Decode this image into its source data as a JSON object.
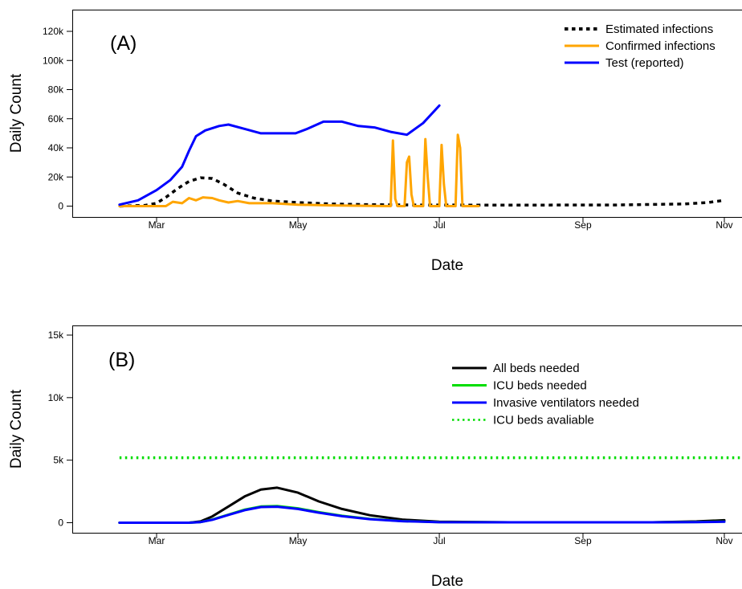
{
  "chart_data": [
    {
      "type": "line",
      "panel_label": "(A)",
      "xlabel": "Date",
      "ylabel": "Daily Count",
      "x_ticks": [
        "Mar",
        "May",
        "Jul",
        "Sep",
        "Nov"
      ],
      "y_ticks": [
        "0",
        "20k",
        "40k",
        "60k",
        "80k",
        "100k",
        "120k"
      ],
      "ylim": [
        0,
        120000
      ],
      "xlim": [
        "2020-02-14",
        "2020-11-01"
      ],
      "legend_position": "top-right",
      "series": [
        {
          "name": "Estimated infections",
          "color": "#000000",
          "style": "dotted",
          "x": [
            "2020-02-14",
            "2020-02-25",
            "2020-03-01",
            "2020-03-05",
            "2020-03-10",
            "2020-03-15",
            "2020-03-20",
            "2020-03-25",
            "2020-03-30",
            "2020-04-05",
            "2020-04-12",
            "2020-04-20",
            "2020-05-01",
            "2020-05-15",
            "2020-06-01",
            "2020-06-20",
            "2020-07-15",
            "2020-08-15",
            "2020-09-15",
            "2020-10-15",
            "2020-10-25",
            "2020-11-01"
          ],
          "y": [
            0,
            500,
            2000,
            6000,
            12000,
            17000,
            19500,
            19000,
            15000,
            9000,
            5500,
            3500,
            2500,
            1500,
            1000,
            800,
            700,
            700,
            800,
            1500,
            2500,
            4000
          ]
        },
        {
          "name": "Confirmed infections",
          "color": "#ffa500",
          "style": "solid",
          "x": [
            "2020-02-14",
            "2020-03-05",
            "2020-03-08",
            "2020-03-12",
            "2020-03-15",
            "2020-03-18",
            "2020-03-21",
            "2020-03-25",
            "2020-03-28",
            "2020-04-01",
            "2020-04-05",
            "2020-04-10",
            "2020-04-20",
            "2020-05-01",
            "2020-05-15",
            "2020-06-10",
            "2020-06-11",
            "2020-06-12",
            "2020-06-13",
            "2020-06-16",
            "2020-06-17",
            "2020-06-18",
            "2020-06-19",
            "2020-06-20",
            "2020-06-24",
            "2020-06-25",
            "2020-06-26",
            "2020-06-27",
            "2020-07-01",
            "2020-07-02",
            "2020-07-03",
            "2020-07-04",
            "2020-07-08",
            "2020-07-09",
            "2020-07-10",
            "2020-07-11",
            "2020-07-14",
            "2020-07-15",
            "2020-07-16",
            "2020-07-17",
            "2020-07-18"
          ],
          "y": [
            0,
            0,
            3000,
            2000,
            5500,
            4000,
            6000,
            5500,
            4000,
            2500,
            3500,
            2000,
            2000,
            1000,
            500,
            0,
            45000,
            5000,
            0,
            0,
            30000,
            34000,
            8000,
            0,
            0,
            46000,
            20000,
            0,
            0,
            42000,
            15000,
            0,
            0,
            49000,
            40000,
            0,
            0,
            0,
            0,
            0,
            0
          ]
        },
        {
          "name": "Test (reported)",
          "color": "#0000ff",
          "style": "solid",
          "x": [
            "2020-02-14",
            "2020-02-22",
            "2020-03-01",
            "2020-03-07",
            "2020-03-12",
            "2020-03-15",
            "2020-03-18",
            "2020-03-22",
            "2020-03-28",
            "2020-04-01",
            "2020-04-08",
            "2020-04-15",
            "2020-04-22",
            "2020-04-30",
            "2020-05-05",
            "2020-05-12",
            "2020-05-20",
            "2020-05-27",
            "2020-06-03",
            "2020-06-10",
            "2020-06-17",
            "2020-06-24",
            "2020-07-01"
          ],
          "y": [
            1000,
            4000,
            11000,
            18000,
            27000,
            38000,
            48000,
            52000,
            55000,
            56000,
            53000,
            50000,
            50000,
            50000,
            53000,
            58000,
            58000,
            55000,
            54000,
            51000,
            49000,
            57000,
            69000
          ]
        }
      ]
    },
    {
      "type": "line",
      "panel_label": "(B)",
      "xlabel": "Date",
      "ylabel": "Daily Count",
      "x_ticks": [
        "Mar",
        "May",
        "Jul",
        "Sep",
        "Nov"
      ],
      "y_ticks": [
        "0",
        "5k",
        "10k",
        "15k"
      ],
      "ylim": [
        0,
        15000
      ],
      "xlim": [
        "2020-02-14",
        "2020-11-01"
      ],
      "legend_position": "top-right",
      "series": [
        {
          "name": "All beds needed",
          "color": "#000000",
          "style": "solid",
          "x": [
            "2020-02-14",
            "2020-03-15",
            "2020-03-20",
            "2020-03-25",
            "2020-04-01",
            "2020-04-08",
            "2020-04-15",
            "2020-04-22",
            "2020-05-01",
            "2020-05-10",
            "2020-05-20",
            "2020-06-01",
            "2020-06-15",
            "2020-07-01",
            "2020-08-01",
            "2020-09-01",
            "2020-10-01",
            "2020-10-20",
            "2020-11-01"
          ],
          "y": [
            0,
            0,
            100,
            500,
            1300,
            2100,
            2650,
            2800,
            2400,
            1700,
            1100,
            600,
            250,
            80,
            30,
            30,
            30,
            100,
            200
          ]
        },
        {
          "name": "ICU beds needed",
          "color": "#00dd00",
          "style": "solid",
          "x": [
            "2020-02-14",
            "2020-03-15",
            "2020-03-20",
            "2020-03-25",
            "2020-04-01",
            "2020-04-08",
            "2020-04-15",
            "2020-04-22",
            "2020-05-01",
            "2020-05-10",
            "2020-05-20",
            "2020-06-01",
            "2020-06-15",
            "2020-07-01",
            "2020-08-01",
            "2020-09-01",
            "2020-10-01",
            "2020-10-20",
            "2020-11-01"
          ],
          "y": [
            0,
            0,
            50,
            250,
            650,
            1050,
            1300,
            1330,
            1150,
            850,
            550,
            300,
            130,
            50,
            30,
            30,
            30,
            60,
            90
          ]
        },
        {
          "name": "Invasive ventilators needed",
          "color": "#0000ff",
          "style": "solid",
          "x": [
            "2020-02-14",
            "2020-03-15",
            "2020-03-20",
            "2020-03-25",
            "2020-04-01",
            "2020-04-08",
            "2020-04-15",
            "2020-04-22",
            "2020-05-01",
            "2020-05-10",
            "2020-05-20",
            "2020-06-01",
            "2020-06-15",
            "2020-07-01",
            "2020-08-01",
            "2020-09-01",
            "2020-10-01",
            "2020-10-20",
            "2020-11-01"
          ],
          "y": [
            0,
            0,
            50,
            230,
            620,
            1000,
            1250,
            1280,
            1100,
            800,
            520,
            280,
            120,
            40,
            30,
            30,
            30,
            50,
            80
          ]
        },
        {
          "name": "ICU beds avaliable",
          "color": "#00dd00",
          "style": "dotted",
          "x": [
            "2020-02-14",
            "2020-11-10"
          ],
          "y": [
            5200,
            5200
          ]
        }
      ]
    }
  ]
}
